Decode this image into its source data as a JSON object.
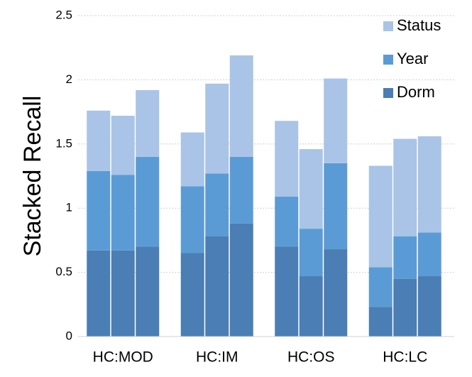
{
  "chart_data": {
    "type": "grouped_stacked_bar",
    "y_label": "Stacked Recall",
    "categories": [
      "HC:MOD",
      "HC:IM",
      "HC:OS",
      "HC:LC"
    ],
    "series": [
      {
        "name": "Dorm",
        "color": "#4a7eb4",
        "values": [
          [
            0.67,
            0.67,
            0.7
          ],
          [
            0.65,
            0.78,
            0.88
          ],
          [
            0.7,
            0.47,
            0.68
          ],
          [
            0.23,
            0.45,
            0.47
          ]
        ]
      },
      {
        "name": "Year",
        "color": "#5b9bd5",
        "values": [
          [
            0.62,
            0.59,
            0.7
          ],
          [
            0.52,
            0.49,
            0.52
          ],
          [
            0.39,
            0.37,
            0.67
          ],
          [
            0.31,
            0.33,
            0.34
          ]
        ]
      },
      {
        "name": "Status",
        "color": "#a9c4e6",
        "values": [
          [
            0.47,
            0.46,
            0.52
          ],
          [
            0.42,
            0.7,
            0.79
          ],
          [
            0.59,
            0.62,
            0.66
          ],
          [
            0.79,
            0.76,
            0.75
          ]
        ]
      }
    ],
    "ylim": [
      0,
      2.5
    ],
    "yticks": [
      0,
      0.5,
      1,
      1.5,
      2,
      2.5
    ],
    "grid": true,
    "legend": "top-right"
  }
}
